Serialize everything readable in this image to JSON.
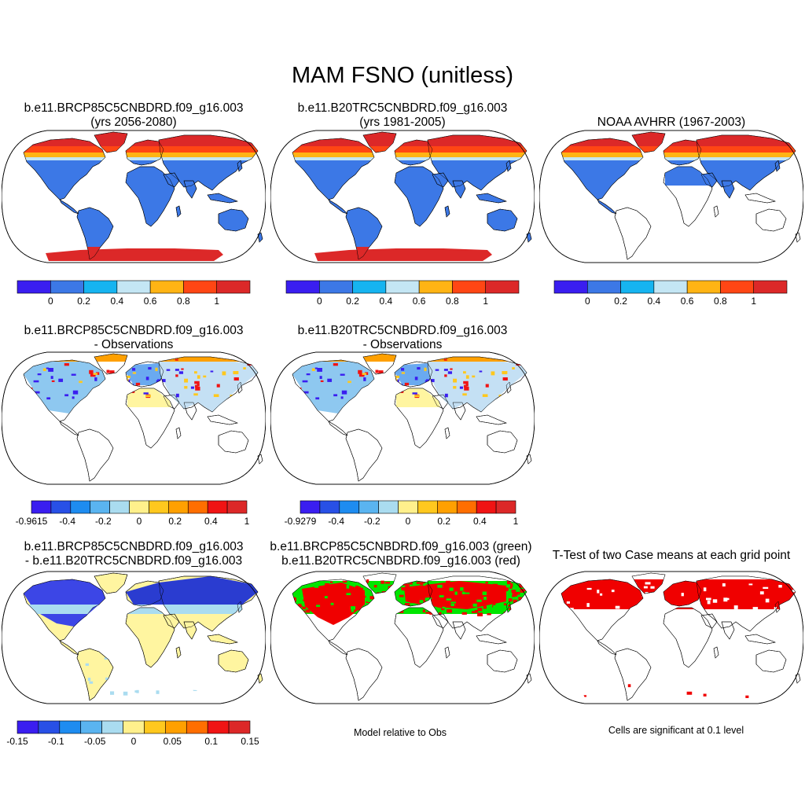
{
  "title": "MAM FSNO (unitless)",
  "panels": {
    "p1": {
      "line1": "b.e11.BRCP85C5CNBDRD.f09_g16.003",
      "line2": "(yrs 2056-2080)"
    },
    "p2": {
      "line1": "b.e11.B20TRC5CNBDRD.f09_g16.003",
      "line2": "(yrs 1981-2005)"
    },
    "p3": {
      "line1": "NOAA AVHRR (1967-2003)"
    },
    "p4": {
      "line1": "b.e11.BRCP85C5CNBDRD.f09_g16.003",
      "line2": "- Observations"
    },
    "p5": {
      "line1": "b.e11.B20TRC5CNBDRD.f09_g16.003",
      "line2": "- Observations"
    },
    "p7": {
      "line1": "b.e11.BRCP85C5CNBDRD.f09_g16.003",
      "line2": "- b.e11.B20TRC5CNBDRD.f09_g16.003"
    },
    "p8": {
      "line1": "b.e11.BRCP85C5CNBDRD.f09_g16.003 (green)",
      "line2": "b.e11.B20TRC5CNBDRD.f09_g16.003 (red)"
    },
    "p9": {
      "line1": "T-Test of two Case means at each grid point"
    }
  },
  "notes": {
    "model_relative": "Model relative to Obs",
    "significance": "Cells are significant at 0.1 level"
  },
  "colorbars": {
    "abs": {
      "colors": [
        "#3a1ef0",
        "#3c78e6",
        "#16b4f0",
        "#c4e6f4",
        "#ffb414",
        "#ff4614",
        "#dc2828"
      ],
      "labels": [
        "0",
        "0.2",
        "0.4",
        "0.6",
        "0.8",
        "1"
      ]
    },
    "diff1": {
      "colors": [
        "#3a1ef0",
        "#2850e6",
        "#1e8cf0",
        "#5ab4f0",
        "#aadcf0",
        "#fff08c",
        "#ffc81e",
        "#ffa000",
        "#ff6e00",
        "#f01414",
        "#dc2828"
      ],
      "labels": [
        "-0.9615",
        "-0.4",
        "-0.2",
        "0",
        "0.2",
        "0.4",
        "1"
      ]
    },
    "diff2": {
      "colors": [
        "#3a1ef0",
        "#2850e6",
        "#1e8cf0",
        "#5ab4f0",
        "#aadcf0",
        "#fff08c",
        "#ffc81e",
        "#ffa000",
        "#ff6e00",
        "#f01414",
        "#dc2828"
      ],
      "labels": [
        "-0.9279",
        "-0.4",
        "-0.2",
        "0",
        "0.2",
        "0.4",
        "1"
      ]
    },
    "diff3": {
      "colors": [
        "#3a1ef0",
        "#2850e6",
        "#1e8cf0",
        "#5ab4f0",
        "#aadcf0",
        "#fff08c",
        "#ffc81e",
        "#ffa000",
        "#ff6e00",
        "#f01414",
        "#dc2828"
      ],
      "labels": [
        "-0.15",
        "-0.1",
        "-0.05",
        "0",
        "0.05",
        "0.1",
        "0.15"
      ]
    }
  },
  "colors": {
    "ocean": "#ffffff",
    "land_blue": "#3c78e6",
    "snow_red": "#dc2828",
    "snow_orange": "#ff4614",
    "diff_yellow": "#fff5a0",
    "ttest_red": "#f00000",
    "green": "#00e600"
  }
}
